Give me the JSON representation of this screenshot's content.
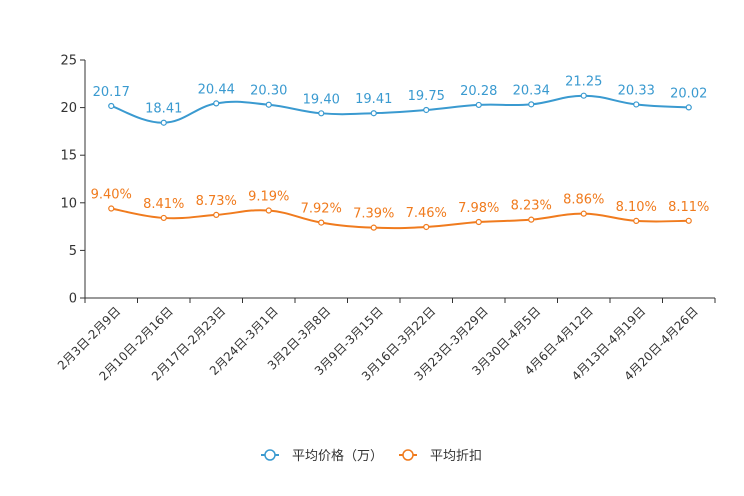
{
  "chart_data": {
    "type": "line",
    "title": "",
    "xlabel": "",
    "ylabel": "",
    "ylim": [
      0,
      25
    ],
    "yticks": [
      "0",
      "5",
      "10",
      "15",
      "20",
      "25"
    ],
    "categories": [
      "2月3日-2月9日",
      "2月10日-2月16日",
      "2月17日-2月23日",
      "2月24日-3月1日",
      "3月2日-3月8日",
      "3月9日-3月15日",
      "3月16日-3月22日",
      "3月23日-3月29日",
      "3月30日-4月5日",
      "4月6日-4月12日",
      "4月13日-4月19日",
      "4月20日-4月26日"
    ],
    "series": [
      {
        "name": "平均价格（万）",
        "color": "#3a9ad0",
        "values": [
          20.17,
          18.41,
          20.44,
          20.3,
          19.4,
          19.41,
          19.75,
          20.28,
          20.34,
          21.25,
          20.33,
          20.02
        ],
        "labels": [
          "20.17",
          "18.41",
          "20.44",
          "20.30",
          "19.40",
          "19.41",
          "19.75",
          "20.28",
          "20.34",
          "21.25",
          "20.33",
          "20.02"
        ]
      },
      {
        "name": "平均折扣",
        "color": "#f07b1e",
        "values": [
          9.4,
          8.41,
          8.73,
          9.19,
          7.92,
          7.39,
          7.46,
          7.98,
          8.23,
          8.86,
          8.1,
          8.11
        ],
        "labels": [
          "9.40%",
          "8.41%",
          "8.73%",
          "9.19%",
          "7.92%",
          "7.39%",
          "7.46%",
          "7.98%",
          "8.23%",
          "8.86%",
          "8.10%",
          "8.11%"
        ]
      }
    ],
    "legend_position": "bottom-center",
    "grid": false
  }
}
